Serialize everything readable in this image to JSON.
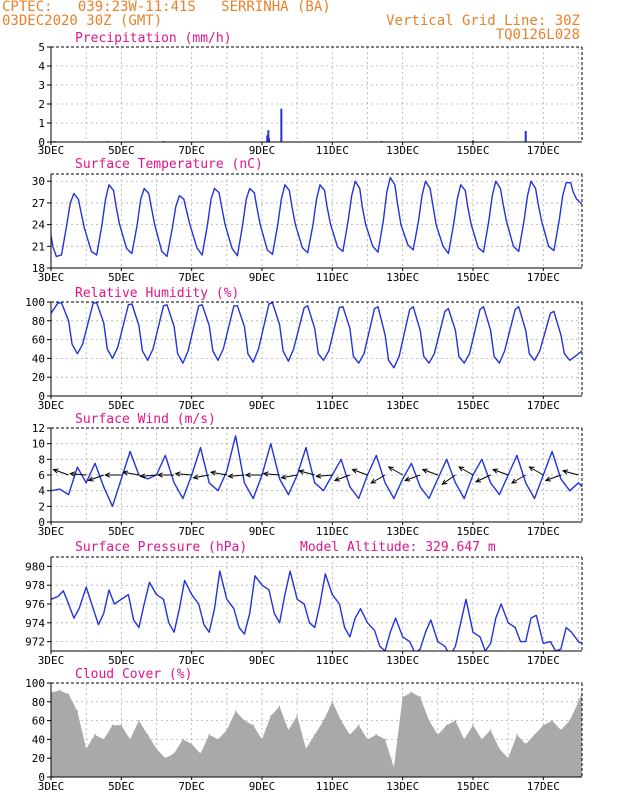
{
  "header": {
    "line1": "CPTEC:   039:23W-11:41S   SERRINHA (BA)",
    "line2": "03DEC2020 30Z (GMT)",
    "grid_note": "Vertical Grid Line: 30Z",
    "model_code": "TQ0126L028"
  },
  "colors": {
    "header": "#e8822a",
    "panel_title": "#e0148c",
    "series": "#2233dd",
    "cloud": "#a9a9a9",
    "wind_arrow": "#000000",
    "grid": "#b0b0b0"
  },
  "x_axis": {
    "tick_labels": [
      "3DEC",
      "5DEC",
      "7DEC",
      "9DEC",
      "11DEC",
      "13DEC",
      "15DEC",
      "17DEC"
    ],
    "tick_days": [
      3,
      5,
      7,
      9,
      11,
      13,
      15,
      17
    ],
    "day_range": [
      3,
      18.1
    ],
    "year_label": "2020"
  },
  "chart_data": [
    {
      "id": "precip",
      "type": "bar",
      "title": "Precipitation (mm/h)",
      "ylim": [
        0,
        5
      ],
      "yticks": [
        "0",
        "1",
        "2",
        "3",
        "4",
        "5"
      ],
      "grid": true,
      "x": [
        3.1,
        3.5,
        4.6,
        6.2,
        9.15,
        9.18,
        9.2,
        9.55,
        12.4,
        15.0,
        16.5
      ],
      "values": [
        0.05,
        0.03,
        0.04,
        0.05,
        0.35,
        0.62,
        0.2,
        1.75,
        0.05,
        0.08,
        0.58
      ]
    },
    {
      "id": "temp",
      "type": "line",
      "title": "Surface Temperature (nC)",
      "ylim": [
        18,
        31
      ],
      "yticks": [
        "18",
        "21",
        "24",
        "27",
        "30"
      ],
      "grid": true,
      "x": [
        3.0,
        3.05,
        3.15,
        3.3,
        3.45,
        3.55,
        3.65,
        3.78,
        3.85,
        3.95,
        4.15,
        4.3,
        4.45,
        4.55,
        4.65,
        4.78,
        4.85,
        4.95,
        5.15,
        5.3,
        5.45,
        5.55,
        5.65,
        5.78,
        5.85,
        5.95,
        6.15,
        6.3,
        6.45,
        6.55,
        6.65,
        6.78,
        6.85,
        6.95,
        7.15,
        7.3,
        7.45,
        7.55,
        7.65,
        7.78,
        7.85,
        7.95,
        8.15,
        8.3,
        8.45,
        8.55,
        8.65,
        8.78,
        8.85,
        8.95,
        9.15,
        9.3,
        9.45,
        9.55,
        9.65,
        9.78,
        9.85,
        9.95,
        10.15,
        10.3,
        10.45,
        10.55,
        10.65,
        10.78,
        10.85,
        10.95,
        11.15,
        11.3,
        11.45,
        11.55,
        11.65,
        11.78,
        11.85,
        11.95,
        12.15,
        12.3,
        12.45,
        12.55,
        12.65,
        12.78,
        12.85,
        12.95,
        13.15,
        13.3,
        13.45,
        13.55,
        13.65,
        13.78,
        13.85,
        13.95,
        14.15,
        14.3,
        14.45,
        14.55,
        14.65,
        14.78,
        14.85,
        14.95,
        15.15,
        15.3,
        15.45,
        15.55,
        15.65,
        15.78,
        15.85,
        15.95,
        16.15,
        16.3,
        16.45,
        16.55,
        16.65,
        16.78,
        16.85,
        16.95,
        17.15,
        17.3,
        17.45,
        17.55,
        17.65,
        17.78,
        17.85,
        17.95,
        18.1
      ],
      "values": [
        22.5,
        21.0,
        19.6,
        19.8,
        24.0,
        27.0,
        28.3,
        27.5,
        25.8,
        23.5,
        20.3,
        19.8,
        24.0,
        27.5,
        29.5,
        28.7,
        26.5,
        24.0,
        20.7,
        20.0,
        24.0,
        27.5,
        29.0,
        28.3,
        26.5,
        24.0,
        20.3,
        19.6,
        23.5,
        26.5,
        28.0,
        27.5,
        26.0,
        24.0,
        20.8,
        19.8,
        24.0,
        27.5,
        29.0,
        28.4,
        26.5,
        24.0,
        20.7,
        19.7,
        24.0,
        27.5,
        29.0,
        28.4,
        26.5,
        24.0,
        20.5,
        19.9,
        24.0,
        27.5,
        29.5,
        28.7,
        26.5,
        24.0,
        20.8,
        20.1,
        24.0,
        27.5,
        29.5,
        28.7,
        26.5,
        24.0,
        20.9,
        20.3,
        24.5,
        28.0,
        30.0,
        29.0,
        26.5,
        24.0,
        21.0,
        20.2,
        24.5,
        28.5,
        30.5,
        29.5,
        27.0,
        24.0,
        21.2,
        20.5,
        24.5,
        28.0,
        30.0,
        29.0,
        27.0,
        24.0,
        21.0,
        20.0,
        24.0,
        27.5,
        29.5,
        28.7,
        26.5,
        24.0,
        20.8,
        20.2,
        24.5,
        28.0,
        30.0,
        29.0,
        27.0,
        24.5,
        21.0,
        20.3,
        24.5,
        28.0,
        30.0,
        29.0,
        27.0,
        24.5,
        21.0,
        20.4,
        24.5,
        28.0,
        29.8,
        29.8,
        28.5,
        27.5,
        26.8
      ]
    },
    {
      "id": "rh",
      "type": "line",
      "title": "Relative Humidity (%)",
      "ylim": [
        0,
        100
      ],
      "yticks": [
        "0",
        "20",
        "40",
        "60",
        "80",
        "100"
      ],
      "grid": true,
      "x": [
        3.0,
        3.2,
        3.3,
        3.5,
        3.6,
        3.75,
        3.9,
        4.2,
        4.3,
        4.5,
        4.6,
        4.75,
        4.9,
        5.2,
        5.3,
        5.5,
        5.6,
        5.75,
        5.9,
        6.2,
        6.3,
        6.5,
        6.6,
        6.75,
        6.9,
        7.2,
        7.3,
        7.5,
        7.6,
        7.75,
        7.9,
        8.2,
        8.3,
        8.5,
        8.6,
        8.75,
        8.9,
        9.2,
        9.3,
        9.5,
        9.6,
        9.75,
        9.9,
        10.2,
        10.3,
        10.5,
        10.6,
        10.75,
        10.9,
        11.2,
        11.3,
        11.5,
        11.6,
        11.75,
        11.9,
        12.2,
        12.3,
        12.5,
        12.6,
        12.75,
        12.9,
        13.2,
        13.3,
        13.5,
        13.6,
        13.75,
        13.9,
        14.2,
        14.3,
        14.5,
        14.6,
        14.75,
        14.9,
        15.2,
        15.3,
        15.5,
        15.6,
        15.75,
        15.9,
        16.2,
        16.3,
        16.5,
        16.6,
        16.75,
        16.9,
        17.2,
        17.3,
        17.5,
        17.6,
        17.75,
        17.9,
        18.1
      ],
      "values": [
        88,
        99,
        99,
        80,
        55,
        45,
        55,
        99,
        99,
        78,
        50,
        40,
        52,
        97,
        98,
        75,
        48,
        38,
        50,
        96,
        97,
        74,
        45,
        35,
        48,
        96,
        97,
        75,
        48,
        38,
        50,
        96,
        96,
        74,
        45,
        36,
        50,
        98,
        99,
        76,
        48,
        37,
        50,
        94,
        96,
        72,
        45,
        38,
        48,
        94,
        95,
        72,
        42,
        35,
        45,
        93,
        95,
        65,
        38,
        30,
        42,
        92,
        95,
        70,
        42,
        35,
        45,
        90,
        93,
        70,
        42,
        35,
        45,
        92,
        95,
        70,
        42,
        35,
        48,
        92,
        95,
        70,
        45,
        38,
        48,
        88,
        90,
        65,
        45,
        38,
        42,
        48
      ]
    },
    {
      "id": "wind",
      "type": "line",
      "title": "Surface Wind (m/s)",
      "ylim": [
        0,
        12
      ],
      "yticks": [
        "0",
        "2",
        "4",
        "6",
        "8",
        "10",
        "12"
      ],
      "grid": true,
      "x": [
        3.0,
        3.25,
        3.5,
        3.75,
        4.0,
        4.25,
        4.5,
        4.75,
        5.0,
        5.25,
        5.5,
        5.75,
        6.0,
        6.25,
        6.5,
        6.75,
        7.0,
        7.25,
        7.5,
        7.75,
        8.0,
        8.25,
        8.5,
        8.75,
        9.0,
        9.25,
        9.5,
        9.75,
        10.0,
        10.25,
        10.5,
        10.75,
        11.0,
        11.25,
        11.5,
        11.75,
        12.0,
        12.25,
        12.5,
        12.75,
        13.0,
        13.25,
        13.5,
        13.75,
        14.0,
        14.25,
        14.5,
        14.75,
        15.0,
        15.25,
        15.5,
        15.75,
        16.0,
        16.25,
        16.5,
        16.75,
        17.0,
        17.25,
        17.5,
        17.75,
        18.0,
        18.1
      ],
      "values": [
        4.0,
        4.2,
        3.5,
        7.0,
        5.0,
        7.5,
        4.5,
        2.0,
        5.5,
        9.0,
        6.0,
        5.5,
        6.0,
        8.5,
        5.0,
        3.0,
        6.0,
        9.5,
        5.0,
        4.0,
        6.5,
        11.0,
        5.0,
        3.0,
        6.0,
        10.0,
        5.5,
        3.5,
        6.0,
        9.5,
        5.0,
        4.0,
        6.0,
        8.0,
        4.5,
        3.0,
        6.0,
        8.5,
        5.0,
        3.0,
        5.5,
        7.5,
        4.5,
        3.0,
        5.5,
        8.0,
        5.0,
        3.0,
        6.0,
        8.0,
        5.0,
        3.5,
        6.0,
        8.5,
        5.0,
        3.0,
        6.0,
        9.0,
        5.5,
        4.0,
        5.0,
        4.5
      ],
      "arrows_x": [
        3.0,
        3.5,
        4.0,
        4.5,
        5.0,
        5.5,
        6.0,
        6.5,
        7.0,
        7.5,
        8.0,
        8.5,
        9.0,
        9.5,
        10.0,
        10.5,
        11.0,
        11.5,
        12.0,
        12.5,
        13.0,
        13.5,
        14.0,
        14.5,
        15.0,
        15.5,
        16.0,
        16.5,
        17.0,
        17.5,
        18.0
      ],
      "arrows_dir_deg": [
        200,
        160,
        175,
        200,
        180,
        170,
        185,
        180,
        175,
        190,
        170,
        185,
        180,
        175,
        190,
        165,
        185,
        200,
        160,
        210,
        150,
        200,
        160,
        215,
        150,
        205,
        160,
        210,
        150,
        200,
        165
      ]
    },
    {
      "id": "pres",
      "type": "line",
      "title": "Surface Pressure (hPa)",
      "subtitle": "Model Altitude: 329.647  m",
      "ylim": [
        971,
        981
      ],
      "yticks": [
        "972",
        "974",
        "976",
        "978",
        "980"
      ],
      "grid": true,
      "x": [
        3.0,
        3.2,
        3.35,
        3.5,
        3.65,
        3.8,
        4.0,
        4.2,
        4.35,
        4.5,
        4.65,
        4.8,
        5.0,
        5.2,
        5.35,
        5.5,
        5.65,
        5.8,
        6.0,
        6.2,
        6.35,
        6.5,
        6.65,
        6.8,
        7.0,
        7.2,
        7.35,
        7.5,
        7.65,
        7.8,
        8.0,
        8.2,
        8.35,
        8.5,
        8.65,
        8.8,
        9.0,
        9.2,
        9.35,
        9.5,
        9.65,
        9.8,
        10.0,
        10.2,
        10.35,
        10.5,
        10.65,
        10.8,
        11.0,
        11.2,
        11.35,
        11.5,
        11.65,
        11.8,
        12.0,
        12.2,
        12.35,
        12.5,
        12.65,
        12.8,
        13.0,
        13.2,
        13.35,
        13.5,
        13.65,
        13.8,
        14.0,
        14.2,
        14.35,
        14.5,
        14.65,
        14.8,
        15.0,
        15.2,
        15.35,
        15.5,
        15.65,
        15.8,
        16.0,
        16.2,
        16.35,
        16.5,
        16.65,
        16.8,
        17.0,
        17.2,
        17.35,
        17.5,
        17.65,
        17.8,
        18.0,
        18.1
      ],
      "values": [
        976.5,
        976.8,
        977.4,
        976.0,
        974.5,
        975.5,
        977.8,
        975.5,
        973.8,
        975.0,
        977.5,
        976.0,
        976.5,
        977.0,
        974.3,
        973.5,
        976.0,
        978.3,
        977.0,
        976.5,
        974.0,
        973.0,
        975.5,
        978.5,
        977.0,
        976.0,
        973.8,
        973.0,
        975.5,
        979.5,
        976.5,
        975.5,
        973.5,
        972.8,
        975.0,
        979.0,
        978.0,
        977.5,
        975.0,
        974.0,
        977.0,
        979.5,
        976.5,
        976.0,
        974.0,
        973.5,
        976.0,
        979.2,
        977.0,
        976.0,
        973.5,
        972.5,
        974.5,
        975.5,
        974.0,
        973.2,
        971.5,
        971.0,
        973.0,
        974.5,
        972.5,
        972.0,
        970.8,
        971.2,
        973.0,
        974.3,
        972.0,
        971.5,
        970.5,
        971.5,
        974.0,
        976.5,
        973.0,
        972.5,
        971.0,
        971.8,
        974.5,
        976.0,
        974.0,
        973.5,
        972.0,
        972.0,
        974.5,
        974.8,
        971.8,
        972.0,
        971.0,
        971.2,
        973.5,
        973.0,
        972.0,
        971.8
      ]
    },
    {
      "id": "cloud",
      "type": "area",
      "title": "Cloud Cover (%)",
      "ylim": [
        0,
        100
      ],
      "yticks": [
        "0",
        "20",
        "40",
        "60",
        "80",
        "100"
      ],
      "grid": true,
      "x": [
        3.0,
        3.25,
        3.5,
        3.75,
        4.0,
        4.25,
        4.5,
        4.75,
        5.0,
        5.25,
        5.5,
        5.75,
        6.0,
        6.25,
        6.5,
        6.75,
        7.0,
        7.25,
        7.5,
        7.75,
        8.0,
        8.25,
        8.5,
        8.75,
        9.0,
        9.25,
        9.5,
        9.75,
        10.0,
        10.25,
        10.5,
        10.75,
        11.0,
        11.25,
        11.5,
        11.75,
        12.0,
        12.25,
        12.5,
        12.75,
        13.0,
        13.25,
        13.5,
        13.75,
        14.0,
        14.25,
        14.5,
        14.75,
        15.0,
        15.25,
        15.5,
        15.75,
        16.0,
        16.25,
        16.5,
        16.75,
        17.0,
        17.25,
        17.5,
        17.75,
        18.0,
        18.1
      ],
      "values": [
        90,
        92,
        88,
        70,
        30,
        45,
        40,
        55,
        55,
        40,
        60,
        45,
        30,
        20,
        25,
        40,
        35,
        25,
        45,
        40,
        50,
        70,
        60,
        55,
        40,
        65,
        75,
        50,
        65,
        30,
        45,
        60,
        80,
        60,
        45,
        55,
        40,
        45,
        40,
        10,
        85,
        90,
        85,
        60,
        45,
        55,
        60,
        40,
        55,
        40,
        50,
        30,
        20,
        45,
        35,
        45,
        55,
        60,
        50,
        60,
        80,
        90
      ]
    }
  ]
}
